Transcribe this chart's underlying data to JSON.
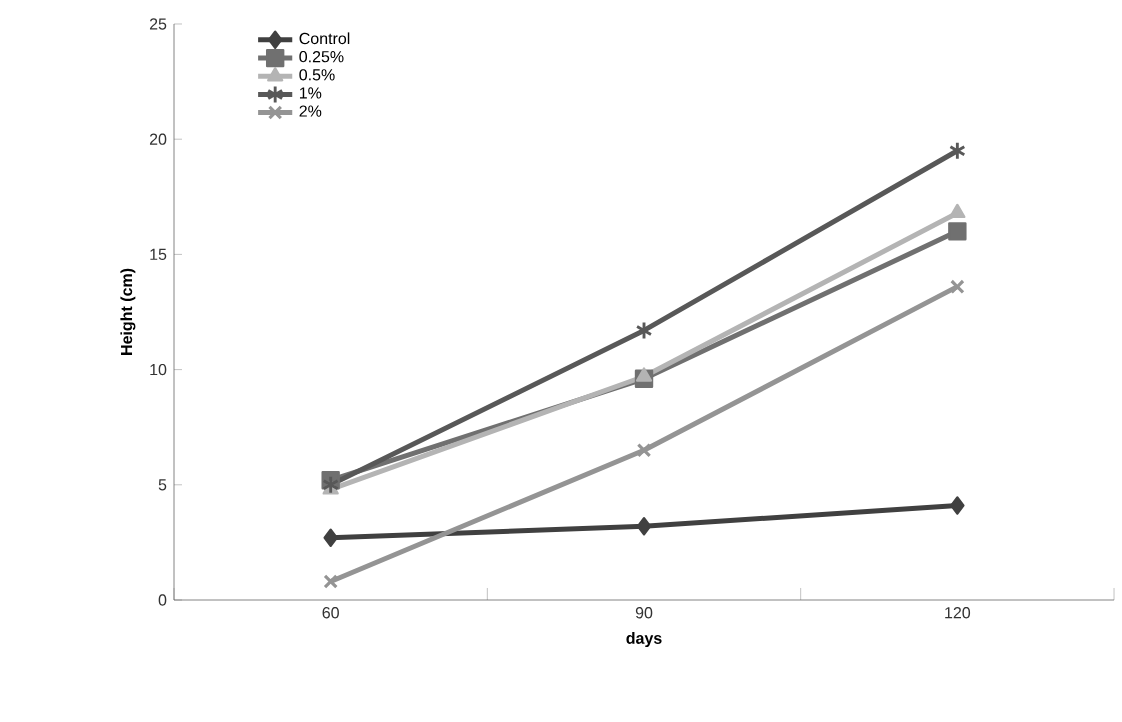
{
  "chart_data": {
    "type": "line",
    "xlabel": "days",
    "ylabel": "Height (cm)",
    "categories": [
      "60",
      "90",
      "120"
    ],
    "series": [
      {
        "name": "Control",
        "color": "#404040",
        "marker": "diamond",
        "values": [
          2.7,
          3.2,
          4.1
        ]
      },
      {
        "name": "0.25%",
        "color": "#707070",
        "marker": "square",
        "values": [
          5.2,
          9.6,
          16.0
        ]
      },
      {
        "name": "0.5%",
        "color": "#b4b4b4",
        "marker": "triangle",
        "values": [
          4.8,
          9.7,
          16.8
        ]
      },
      {
        "name": "1%",
        "color": "#585858",
        "marker": "star",
        "values": [
          5.0,
          11.7,
          19.5
        ]
      },
      {
        "name": "2%",
        "color": "#949494",
        "marker": "cross",
        "values": [
          0.8,
          6.5,
          13.6
        ]
      }
    ],
    "ylim": [
      0,
      25
    ],
    "yticks": [
      0,
      5,
      10,
      15,
      20,
      25
    ],
    "grid": false,
    "legend": "top left",
    "line_style": "solid"
  }
}
